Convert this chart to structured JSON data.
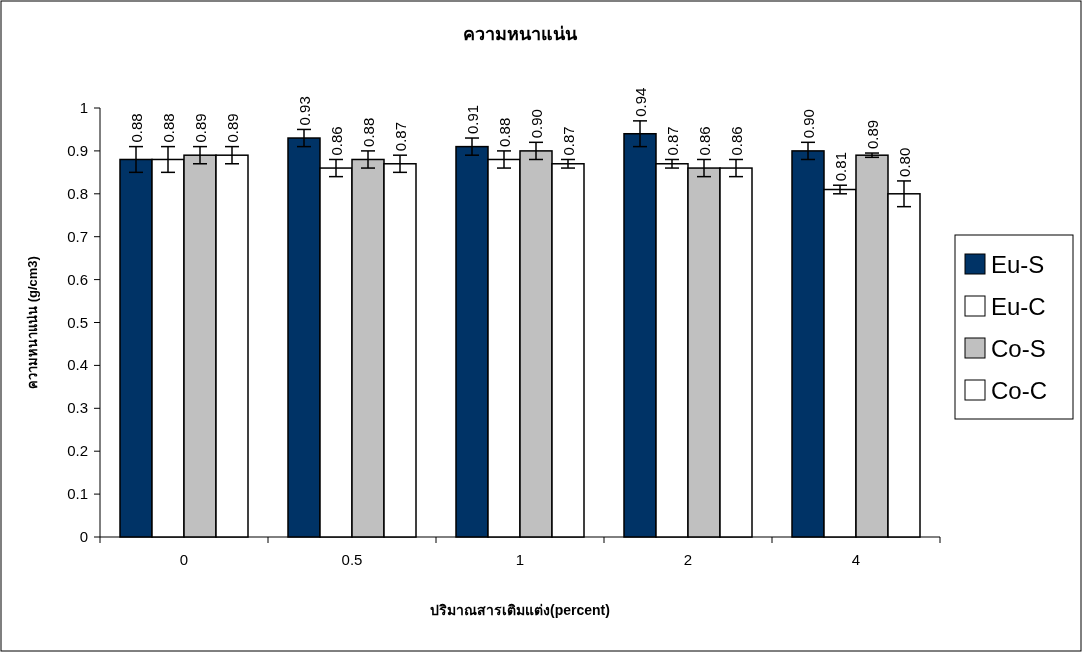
{
  "chart_data": {
    "type": "bar",
    "title": "ความหนาแน่น",
    "xlabel": "ปริมาณสารเติมแต่ง(percent)",
    "ylabel": "ความหนาแน่น (g/cm3)",
    "categories": [
      "0",
      "0.5",
      "1",
      "2",
      "4"
    ],
    "series": [
      {
        "name": "Eu-S",
        "color": "#003366",
        "values": [
          0.88,
          0.93,
          0.91,
          0.94,
          0.9
        ],
        "errors": [
          0.03,
          0.02,
          0.02,
          0.03,
          0.02
        ],
        "value_labels": [
          "0.88",
          "0.93",
          "0.91",
          "0.94",
          "0.90"
        ]
      },
      {
        "name": "Eu-C",
        "color": "#ffffff",
        "values": [
          0.88,
          0.86,
          0.88,
          0.87,
          0.81
        ],
        "errors": [
          0.03,
          0.02,
          0.02,
          0.01,
          0.01
        ],
        "value_labels": [
          "0.88",
          "0.86",
          "0.88",
          "0.87",
          "0.81"
        ]
      },
      {
        "name": "Co-S",
        "color": "#c0c0c0",
        "values": [
          0.89,
          0.88,
          0.9,
          0.86,
          0.89
        ],
        "errors": [
          0.02,
          0.02,
          0.02,
          0.02,
          0.005
        ],
        "value_labels": [
          "0.89",
          "0.88",
          "0.90",
          "0.86",
          "0.89"
        ]
      },
      {
        "name": "Co-C",
        "color": "#ffffff",
        "values": [
          0.89,
          0.87,
          0.87,
          0.86,
          0.8
        ],
        "errors": [
          0.02,
          0.02,
          0.01,
          0.02,
          0.03
        ],
        "value_labels": [
          "0.89",
          "0.87",
          "0.87",
          "0.86",
          "0.80"
        ]
      }
    ],
    "ylim": [
      0,
      1
    ],
    "yticks": [
      0,
      0.1,
      0.2,
      0.3,
      0.4,
      0.5,
      0.6,
      0.7,
      0.8,
      0.9,
      1
    ],
    "legend": "right"
  }
}
